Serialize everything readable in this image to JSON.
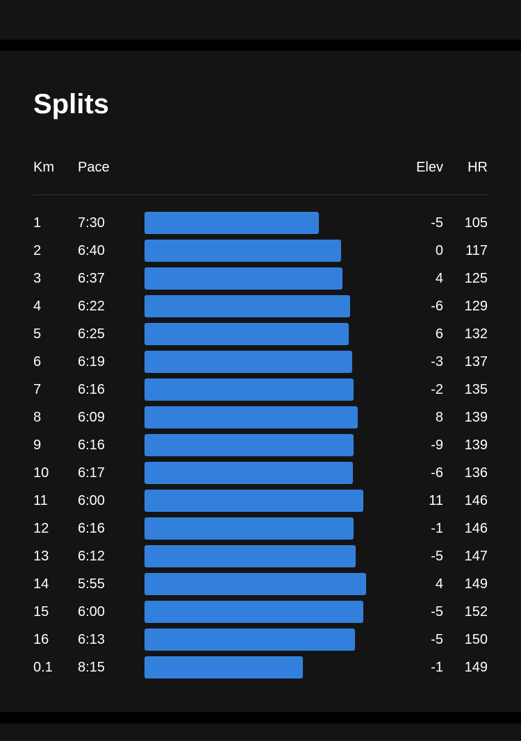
{
  "colors": {
    "background": "#141414",
    "bar": "#3380dc",
    "divider": "#333333",
    "text": "#ffffff"
  },
  "splits": {
    "title": "Splits",
    "headers": {
      "km": "Km",
      "pace": "Pace",
      "elev": "Elev",
      "hr": "HR"
    },
    "rows": [
      {
        "km": "1",
        "pace": "7:30",
        "elev": "-5",
        "hr": "105"
      },
      {
        "km": "2",
        "pace": "6:40",
        "elev": "0",
        "hr": "117"
      },
      {
        "km": "3",
        "pace": "6:37",
        "elev": "4",
        "hr": "125"
      },
      {
        "km": "4",
        "pace": "6:22",
        "elev": "-6",
        "hr": "129"
      },
      {
        "km": "5",
        "pace": "6:25",
        "elev": "6",
        "hr": "132"
      },
      {
        "km": "6",
        "pace": "6:19",
        "elev": "-3",
        "hr": "137"
      },
      {
        "km": "7",
        "pace": "6:16",
        "elev": "-2",
        "hr": "135"
      },
      {
        "km": "8",
        "pace": "6:09",
        "elev": "8",
        "hr": "139"
      },
      {
        "km": "9",
        "pace": "6:16",
        "elev": "-9",
        "hr": "139"
      },
      {
        "km": "10",
        "pace": "6:17",
        "elev": "-6",
        "hr": "136"
      },
      {
        "km": "11",
        "pace": "6:00",
        "elev": "11",
        "hr": "146"
      },
      {
        "km": "12",
        "pace": "6:16",
        "elev": "-1",
        "hr": "146"
      },
      {
        "km": "13",
        "pace": "6:12",
        "elev": "-5",
        "hr": "147"
      },
      {
        "km": "14",
        "pace": "5:55",
        "elev": "4",
        "hr": "149"
      },
      {
        "km": "15",
        "pace": "6:00",
        "elev": "-5",
        "hr": "152"
      },
      {
        "km": "16",
        "pace": "6:13",
        "elev": "-5",
        "hr": "150"
      },
      {
        "km": "0.1",
        "pace": "8:15",
        "elev": "-1",
        "hr": "149"
      }
    ]
  }
}
